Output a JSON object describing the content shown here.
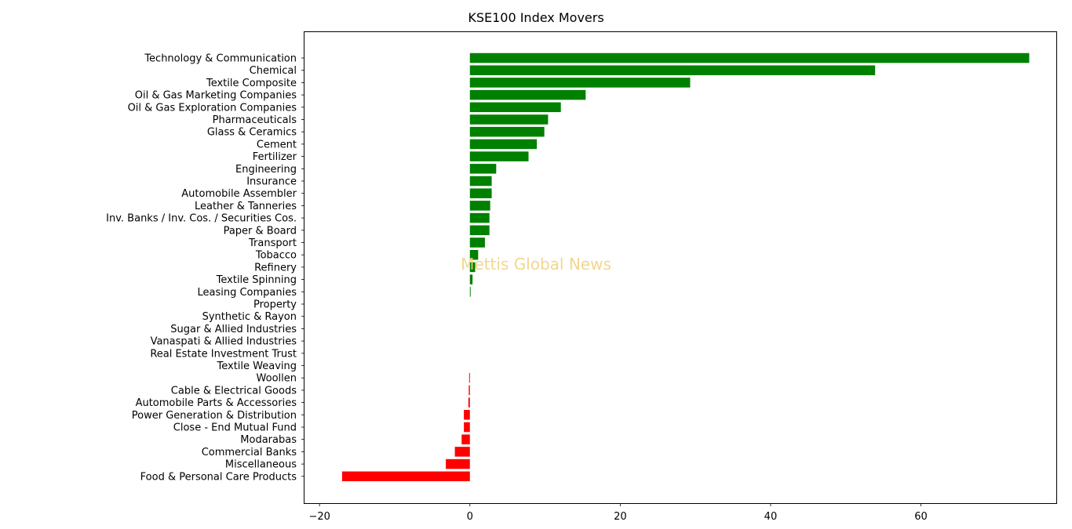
{
  "chart_data": {
    "type": "bar",
    "orientation": "horizontal",
    "title": "KSE100 Index Movers",
    "xlabel": "",
    "ylabel": "",
    "xlim": [
      -22,
      78
    ],
    "xticks": [
      -20,
      0,
      20,
      40,
      60
    ],
    "grid": false,
    "watermark": "Mettis Global News",
    "colors": {
      "positive": "#008000",
      "negative": "#ff0000",
      "watermark": "#f2d07a"
    },
    "categories": [
      "Technology & Communication",
      "Chemical",
      "Textile Composite",
      "Oil & Gas Marketing Companies",
      "Oil & Gas Exploration Companies",
      "Pharmaceuticals",
      "Glass & Ceramics",
      "Cement",
      "Fertilizer",
      "Engineering",
      "Insurance",
      "Automobile Assembler",
      "Leather & Tanneries",
      "Inv. Banks / Inv. Cos. / Securities Cos.",
      "Paper & Board",
      "Transport",
      "Tobacco",
      "Refinery",
      "Textile Spinning",
      "Leasing Companies",
      "Property",
      "Synthetic & Rayon",
      "Sugar & Allied Industries",
      "Vanaspati & Allied Industries",
      "Real Estate Investment Trust",
      "Textile Weaving",
      "Woollen",
      "Cable & Electrical Goods",
      "Automobile Parts & Accessories",
      "Power Generation & Distribution",
      "Close - End Mutual Fund",
      "Modarabas",
      "Commercial Banks",
      "Miscellaneous",
      "Food & Personal Care Products"
    ],
    "values": [
      74.4,
      53.9,
      29.3,
      15.4,
      12.1,
      10.4,
      9.9,
      8.9,
      7.8,
      3.5,
      2.9,
      2.9,
      2.7,
      2.6,
      2.6,
      2.0,
      1.1,
      0.7,
      0.35,
      0.1,
      0,
      0,
      0,
      0,
      0,
      0,
      -0.1,
      -0.15,
      -0.2,
      -0.8,
      -0.8,
      -1.1,
      -2.0,
      -3.2,
      -17.0
    ]
  }
}
